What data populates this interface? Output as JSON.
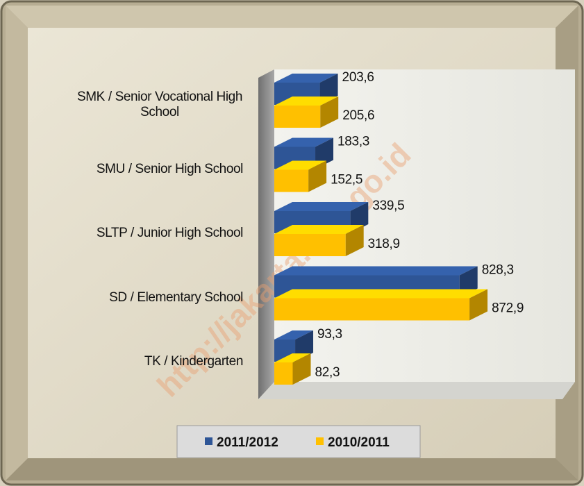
{
  "chart_data": {
    "type": "bar",
    "orientation": "horizontal",
    "categories": [
      "SMK / Senior Vocational High School",
      "SMU / Senior High School",
      "SLTP / Junior High School",
      "SD / Elementary School",
      "TK / Kindergarten"
    ],
    "series": [
      {
        "name": "2011/2012",
        "color": "#2e5596",
        "values": [
          203.6,
          183.3,
          339.5,
          828.3,
          93.3
        ],
        "value_labels": [
          "203,6",
          "183,3",
          "339,5",
          "828,3",
          "93,3"
        ]
      },
      {
        "name": "2010/2011",
        "color": "#ffc000",
        "values": [
          205.6,
          152.5,
          318.9,
          872.9,
          82.3
        ],
        "value_labels": [
          "205,6",
          "152,5",
          "318,9",
          "872,9",
          "82,3"
        ]
      }
    ],
    "watermark": "http://jakarta.bps.go.id"
  }
}
